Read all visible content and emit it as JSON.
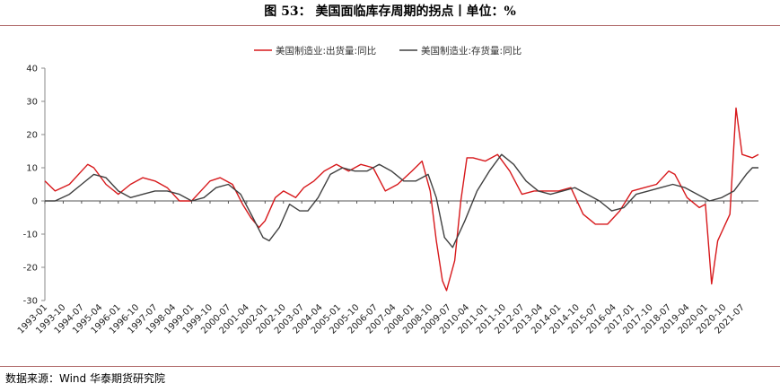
{
  "title": "图 53：  美国面临库存周期的拐点丨单位：%",
  "source": "数据来源：Wind  华泰期货研究院",
  "colors": {
    "shipments": "#d7191c",
    "inventory": "#404040",
    "rule": "#b06a6a"
  },
  "chart_data": {
    "type": "line",
    "title": "",
    "xlabel": "",
    "ylabel": "",
    "ylim": [
      -30,
      40
    ],
    "yticks": [
      -30,
      -20,
      -10,
      0,
      10,
      20,
      30,
      40
    ],
    "grid": false,
    "legend_position": "top-center",
    "x_start": "1993-01",
    "x_end": "2022-03",
    "x_tick_labels": [
      "1993-01",
      "1993-10",
      "1994-07",
      "1995-04",
      "1996-01",
      "1996-10",
      "1997-07",
      "1998-04",
      "1999-01",
      "1999-10",
      "2000-07",
      "2001-04",
      "2002-01",
      "2002-10",
      "2003-07",
      "2004-04",
      "2005-01",
      "2005-10",
      "2006-07",
      "2007-04",
      "2008-01",
      "2008-10",
      "2009-07",
      "2010-04",
      "2011-01",
      "2011-10",
      "2012-07",
      "2013-04",
      "2014-01",
      "2014-10",
      "2015-07",
      "2016-04",
      "2017-01",
      "2017-10",
      "2018-07",
      "2019-04",
      "2020-01",
      "2020-10",
      "2021-07"
    ],
    "series": [
      {
        "name": "美国制造业:出货量:同比",
        "color": "#d7191c",
        "points": [
          [
            "1993-01",
            6
          ],
          [
            "1993-06",
            3
          ],
          [
            "1994-01",
            5
          ],
          [
            "1994-07",
            9
          ],
          [
            "1994-10",
            11
          ],
          [
            "1995-01",
            10
          ],
          [
            "1995-07",
            5
          ],
          [
            "1996-01",
            2
          ],
          [
            "1996-07",
            5
          ],
          [
            "1997-01",
            7
          ],
          [
            "1997-07",
            6
          ],
          [
            "1998-01",
            4
          ],
          [
            "1998-07",
            0
          ],
          [
            "1999-01",
            0
          ],
          [
            "1999-07",
            4
          ],
          [
            "1999-10",
            6
          ],
          [
            "2000-03",
            7
          ],
          [
            "2000-09",
            5
          ],
          [
            "2001-02",
            -1
          ],
          [
            "2001-06",
            -5
          ],
          [
            "2001-10",
            -8
          ],
          [
            "2002-01",
            -6
          ],
          [
            "2002-06",
            1
          ],
          [
            "2002-10",
            3
          ],
          [
            "2003-04",
            1
          ],
          [
            "2003-08",
            4
          ],
          [
            "2004-01",
            6
          ],
          [
            "2004-06",
            9
          ],
          [
            "2004-12",
            11
          ],
          [
            "2005-06",
            9
          ],
          [
            "2005-12",
            11
          ],
          [
            "2006-06",
            10
          ],
          [
            "2006-12",
            3
          ],
          [
            "2007-06",
            5
          ],
          [
            "2008-01",
            9
          ],
          [
            "2008-06",
            12
          ],
          [
            "2008-10",
            3
          ],
          [
            "2009-01",
            -12
          ],
          [
            "2009-04",
            -24
          ],
          [
            "2009-06",
            -27
          ],
          [
            "2009-10",
            -18
          ],
          [
            "2010-01",
            0
          ],
          [
            "2010-04",
            13
          ],
          [
            "2010-07",
            13
          ],
          [
            "2011-01",
            12
          ],
          [
            "2011-07",
            14
          ],
          [
            "2012-01",
            9
          ],
          [
            "2012-07",
            2
          ],
          [
            "2013-01",
            3
          ],
          [
            "2013-07",
            3
          ],
          [
            "2014-01",
            3
          ],
          [
            "2014-07",
            4
          ],
          [
            "2015-01",
            -4
          ],
          [
            "2015-07",
            -7
          ],
          [
            "2016-01",
            -7
          ],
          [
            "2016-07",
            -3
          ],
          [
            "2017-01",
            3
          ],
          [
            "2017-07",
            4
          ],
          [
            "2018-01",
            5
          ],
          [
            "2018-07",
            9
          ],
          [
            "2018-10",
            8
          ],
          [
            "2019-04",
            1
          ],
          [
            "2019-10",
            -2
          ],
          [
            "2020-01",
            -1
          ],
          [
            "2020-04",
            -25
          ],
          [
            "2020-07",
            -12
          ],
          [
            "2020-10",
            -8
          ],
          [
            "2021-01",
            -4
          ],
          [
            "2021-04",
            28
          ],
          [
            "2021-07",
            14
          ],
          [
            "2021-12",
            13
          ],
          [
            "2022-03",
            14
          ]
        ]
      },
      {
        "name": "美国制造业:存货量:同比",
        "color": "#404040",
        "points": [
          [
            "1993-01",
            0
          ],
          [
            "1993-06",
            0
          ],
          [
            "1994-01",
            2
          ],
          [
            "1994-07",
            5
          ],
          [
            "1995-01",
            8
          ],
          [
            "1995-07",
            7
          ],
          [
            "1996-01",
            3
          ],
          [
            "1996-07",
            1
          ],
          [
            "1997-01",
            2
          ],
          [
            "1997-07",
            3
          ],
          [
            "1998-01",
            3
          ],
          [
            "1998-07",
            2
          ],
          [
            "1999-01",
            0
          ],
          [
            "1999-07",
            1
          ],
          [
            "2000-01",
            4
          ],
          [
            "2000-07",
            5
          ],
          [
            "2001-01",
            2
          ],
          [
            "2001-07",
            -5
          ],
          [
            "2001-12",
            -11
          ],
          [
            "2002-03",
            -12
          ],
          [
            "2002-08",
            -8
          ],
          [
            "2003-01",
            -1
          ],
          [
            "2003-06",
            -3
          ],
          [
            "2003-10",
            -3
          ],
          [
            "2004-03",
            1
          ],
          [
            "2004-09",
            8
          ],
          [
            "2005-03",
            10
          ],
          [
            "2005-09",
            9
          ],
          [
            "2006-03",
            9
          ],
          [
            "2006-09",
            11
          ],
          [
            "2007-03",
            9
          ],
          [
            "2007-09",
            6
          ],
          [
            "2008-03",
            6
          ],
          [
            "2008-09",
            8
          ],
          [
            "2009-01",
            1
          ],
          [
            "2009-05",
            -11
          ],
          [
            "2009-09",
            -14
          ],
          [
            "2010-03",
            -6
          ],
          [
            "2010-09",
            3
          ],
          [
            "2011-03",
            9
          ],
          [
            "2011-09",
            14
          ],
          [
            "2012-03",
            11
          ],
          [
            "2012-09",
            6
          ],
          [
            "2013-03",
            3
          ],
          [
            "2013-09",
            2
          ],
          [
            "2014-03",
            3
          ],
          [
            "2014-09",
            4
          ],
          [
            "2015-03",
            2
          ],
          [
            "2015-09",
            0
          ],
          [
            "2016-03",
            -3
          ],
          [
            "2016-09",
            -2
          ],
          [
            "2017-03",
            2
          ],
          [
            "2017-09",
            3
          ],
          [
            "2018-03",
            4
          ],
          [
            "2018-09",
            5
          ],
          [
            "2019-03",
            4
          ],
          [
            "2019-09",
            2
          ],
          [
            "2020-03",
            0
          ],
          [
            "2020-09",
            1
          ],
          [
            "2021-03",
            3
          ],
          [
            "2021-09",
            8
          ],
          [
            "2021-12",
            10
          ],
          [
            "2022-03",
            10
          ]
        ]
      }
    ]
  }
}
